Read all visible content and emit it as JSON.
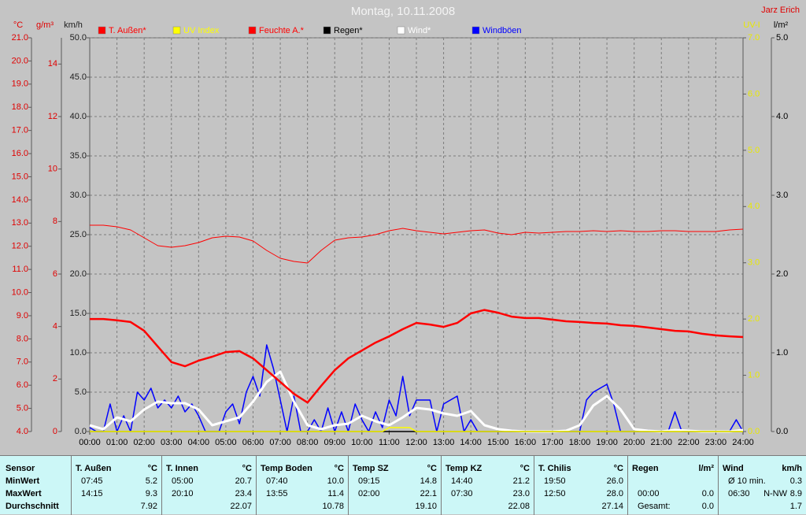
{
  "chart_data": {
    "type": "line",
    "title": "Montag, 10.11.2008",
    "author": "Jarz Erich",
    "xlim": [
      0,
      24
    ],
    "xticks": [
      {
        "value": 0,
        "label": "00:00"
      },
      {
        "value": 1,
        "label": "01:00"
      },
      {
        "value": 2,
        "label": "02:00"
      },
      {
        "value": 3,
        "label": "03:00"
      },
      {
        "value": 4,
        "label": "04:00"
      },
      {
        "value": 5,
        "label": "05:00"
      },
      {
        "value": 6,
        "label": "06:00"
      },
      {
        "value": 7,
        "label": "07:00"
      },
      {
        "value": 8,
        "label": "08:00"
      },
      {
        "value": 9,
        "label": "09:00"
      },
      {
        "value": 10,
        "label": "10:00"
      },
      {
        "value": 11,
        "label": "11:00"
      },
      {
        "value": 12,
        "label": "12:00"
      },
      {
        "value": 13,
        "label": "13:00"
      },
      {
        "value": 14,
        "label": "14:00"
      },
      {
        "value": 15,
        "label": "15:00"
      },
      {
        "value": 16,
        "label": "16:00"
      },
      {
        "value": 17,
        "label": "17:00"
      },
      {
        "value": 18,
        "label": "18:00"
      },
      {
        "value": 19,
        "label": "19:00"
      },
      {
        "value": 20,
        "label": "20:00"
      },
      {
        "value": 21,
        "label": "21:00"
      },
      {
        "value": 22,
        "label": "22:00"
      },
      {
        "value": 23,
        "label": "23:00"
      },
      {
        "value": 24,
        "label": "24:00"
      }
    ],
    "grid": true,
    "grid_axis": 2,
    "axes": [
      {
        "label": "°C",
        "color": "#e00000",
        "ylim": [
          4,
          21
        ],
        "yticks": [
          {
            "value": 4,
            "label": "4.0"
          },
          {
            "value": 5,
            "label": "5.0"
          },
          {
            "value": 6,
            "label": "6.0"
          },
          {
            "value": 7,
            "label": "7.0"
          },
          {
            "value": 8,
            "label": "8.0"
          },
          {
            "value": 9,
            "label": "9.0"
          },
          {
            "value": 10,
            "label": "10.0"
          },
          {
            "value": 11,
            "label": "11.0"
          },
          {
            "value": 12,
            "label": "12.0"
          },
          {
            "value": 13,
            "label": "13.0"
          },
          {
            "value": 14,
            "label": "14.0"
          },
          {
            "value": 15,
            "label": "15.0"
          },
          {
            "value": 16,
            "label": "16.0"
          },
          {
            "value": 17,
            "label": "17.0"
          },
          {
            "value": 18,
            "label": "18.0"
          },
          {
            "value": 19,
            "label": "19.0"
          },
          {
            "value": 20,
            "label": "20.0"
          },
          {
            "value": 21,
            "label": "21.0"
          }
        ]
      },
      {
        "label": "g/m³",
        "color": "#e00000",
        "ylim": [
          0,
          15
        ],
        "yticks": [
          0,
          2,
          4,
          6,
          8,
          10,
          12,
          14
        ]
      },
      {
        "label": "km/h",
        "color": "#202020",
        "ylim": [
          0,
          50
        ],
        "yticks": [
          {
            "value": 0,
            "label": "0.0"
          },
          {
            "value": 5,
            "label": "5.0"
          },
          {
            "value": 10,
            "label": "10.0"
          },
          {
            "value": 15,
            "label": "15.0"
          },
          {
            "value": 20,
            "label": "20.0"
          },
          {
            "value": 25,
            "label": "25.0"
          },
          {
            "value": 30,
            "label": "30.0"
          },
          {
            "value": 35,
            "label": "35.0"
          },
          {
            "value": 40,
            "label": "40.0"
          },
          {
            "value": 45,
            "label": "45.0"
          },
          {
            "value": 50,
            "label": "50.0"
          }
        ]
      },
      {
        "label": "UV-I",
        "color": "#e8e800",
        "ylim": [
          0,
          7
        ],
        "yticks": [
          {
            "value": 0,
            "label": "0.0"
          },
          {
            "value": 1,
            "label": "1.0"
          },
          {
            "value": 2,
            "label": "2.0"
          },
          {
            "value": 3,
            "label": "3.0"
          },
          {
            "value": 4,
            "label": "4.0"
          },
          {
            "value": 5,
            "label": "5.0"
          },
          {
            "value": 6,
            "label": "6.0"
          },
          {
            "value": 7,
            "label": "7.0"
          }
        ]
      },
      {
        "label": "l/m²",
        "color": "#000000",
        "ylim": [
          0,
          5
        ],
        "yticks": [
          {
            "value": 0,
            "label": "0.0"
          },
          {
            "value": 1,
            "label": "1.0"
          },
          {
            "value": 2,
            "label": "2.0"
          },
          {
            "value": 3,
            "label": "3.0"
          },
          {
            "value": 4,
            "label": "4.0"
          },
          {
            "value": 5,
            "label": "5.0"
          }
        ]
      }
    ],
    "x": [
      0,
      0.5,
      1,
      1.5,
      2,
      2.5,
      3,
      3.5,
      4,
      4.5,
      5,
      5.5,
      6,
      6.5,
      7,
      7.5,
      8,
      8.5,
      9,
      9.5,
      10,
      10.5,
      11,
      11.5,
      12,
      12.5,
      13,
      13.5,
      14,
      14.5,
      15,
      15.5,
      16,
      16.5,
      17,
      17.5,
      18,
      18.5,
      19,
      19.5,
      20,
      20.5,
      21,
      21.5,
      22,
      22.5,
      23,
      23.5,
      24
    ],
    "series": [
      {
        "name": "T. Außen*",
        "color": "#ff0000",
        "axis": 0,
        "values": [
          8.86,
          8.86,
          8.8,
          8.73,
          8.35,
          7.67,
          7.0,
          6.82,
          7.06,
          7.23,
          7.43,
          7.47,
          7.16,
          6.65,
          6.14,
          5.63,
          5.25,
          5.97,
          6.65,
          7.16,
          7.5,
          7.84,
          8.11,
          8.42,
          8.69,
          8.62,
          8.52,
          8.69,
          9.1,
          9.25,
          9.13,
          8.96,
          8.9,
          8.9,
          8.83,
          8.76,
          8.73,
          8.69,
          8.66,
          8.59,
          8.56,
          8.49,
          8.42,
          8.35,
          8.32,
          8.22,
          8.15,
          8.11,
          8.08
        ]
      },
      {
        "name": "UV Index",
        "color": "#ffff00",
        "axis": 3,
        "x": [
          0,
          10.75,
          11,
          11.75,
          12,
          24
        ],
        "values": [
          0,
          0,
          0.07,
          0.07,
          0,
          0
        ]
      },
      {
        "name": "Feuchte A.*",
        "color": "#ff0000",
        "axis": 1,
        "values": [
          7.86,
          7.86,
          7.8,
          7.68,
          7.38,
          7.08,
          7.02,
          7.08,
          7.2,
          7.38,
          7.44,
          7.41,
          7.26,
          6.9,
          6.6,
          6.48,
          6.42,
          6.9,
          7.29,
          7.38,
          7.41,
          7.5,
          7.65,
          7.74,
          7.65,
          7.59,
          7.53,
          7.59,
          7.65,
          7.68,
          7.56,
          7.5,
          7.59,
          7.56,
          7.59,
          7.62,
          7.62,
          7.65,
          7.62,
          7.65,
          7.62,
          7.62,
          7.65,
          7.65,
          7.62,
          7.62,
          7.62,
          7.68,
          7.71
        ]
      },
      {
        "name": "Regen*",
        "color": "#000000",
        "axis": 4,
        "x": [
          0,
          24
        ],
        "values": [
          0,
          0
        ]
      },
      {
        "name": "Wind*",
        "color": "#ffffff",
        "axis": 2,
        "values": [
          0.8,
          0.3,
          1.8,
          1.3,
          2.8,
          3.8,
          3.6,
          3.6,
          2.8,
          0.8,
          1.3,
          1.8,
          3.8,
          6.3,
          7.6,
          3.8,
          0.8,
          0.3,
          0.8,
          1.0,
          2.0,
          1.3,
          0.8,
          1.8,
          3.0,
          2.8,
          2.3,
          2.0,
          2.6,
          0.8,
          0.3,
          0.1,
          0,
          0,
          0,
          0.1,
          0.8,
          3.3,
          4.5,
          2.8,
          0.3,
          0.1,
          0,
          0.2,
          0.1,
          0,
          0,
          0,
          0.2
        ]
      },
      {
        "name": "Windböen",
        "color": "#0000ff",
        "axis": 2,
        "x": [
          0,
          0.25,
          0.5,
          0.75,
          1,
          1.25,
          1.5,
          1.75,
          2,
          2.25,
          2.5,
          2.75,
          3,
          3.25,
          3.5,
          3.75,
          4,
          4.25,
          4.5,
          4.75,
          5,
          5.25,
          5.5,
          5.75,
          6,
          6.25,
          6.5,
          6.75,
          7,
          7.25,
          7.5,
          7.75,
          8,
          8.25,
          8.5,
          8.75,
          9,
          9.25,
          9.5,
          9.75,
          10,
          10.25,
          10.5,
          10.75,
          11,
          11.25,
          11.5,
          11.75,
          12,
          12.25,
          12.5,
          12.75,
          13,
          13.25,
          13.5,
          13.75,
          14,
          14.25,
          14.5,
          14.75,
          15,
          15.25,
          15.5,
          15.75,
          16,
          16.25,
          16.5,
          16.75,
          17,
          17.25,
          17.5,
          17.75,
          18,
          18.25,
          18.5,
          18.75,
          19,
          19.25,
          19.5,
          19.75,
          20,
          20.25,
          20.5,
          20.75,
          21,
          21.25,
          21.5,
          21.75,
          22,
          22.25,
          22.5,
          22.75,
          23,
          23.25,
          23.5,
          23.75,
          24
        ],
        "values": [
          0.5,
          0,
          0,
          3.5,
          0,
          2.0,
          0,
          5.0,
          4.0,
          5.5,
          3.0,
          4.0,
          3.0,
          4.5,
          2.5,
          3.5,
          2.0,
          0,
          0,
          0,
          2.5,
          3.5,
          1.0,
          5.0,
          7.0,
          4.5,
          11.0,
          8.0,
          4.0,
          0,
          4.5,
          0,
          0,
          1.5,
          0,
          3.0,
          0,
          2.5,
          0,
          3.5,
          1.5,
          0,
          2.5,
          0.5,
          4.0,
          2.0,
          7.0,
          2.0,
          4.0,
          4.0,
          4.0,
          0,
          3.5,
          4.0,
          4.5,
          0,
          1.5,
          0,
          0,
          0,
          0,
          0,
          0,
          0,
          0,
          0,
          0,
          0,
          0,
          0,
          0,
          0,
          0,
          4.0,
          5.0,
          5.5,
          6.0,
          3.5,
          0,
          0,
          0,
          0,
          0,
          0,
          0,
          0,
          2.5,
          0,
          0,
          0,
          0,
          0,
          0,
          0,
          0,
          1.5,
          0
        ]
      }
    ]
  },
  "stats": {
    "first_header": "Sensor",
    "row_labels": [
      "MinWert",
      "MaxWert",
      "Durchschnitt"
    ],
    "columns": [
      {
        "name": "T. Außen",
        "unit": "°C",
        "rows": [
          [
            "07:45",
            "5.2"
          ],
          [
            "14:15",
            "9.3"
          ],
          [
            "7.92"
          ]
        ]
      },
      {
        "name": "T. Innen",
        "unit": "°C",
        "rows": [
          [
            "05:00",
            "20.7"
          ],
          [
            "20:10",
            "23.4"
          ],
          [
            "22.07"
          ]
        ]
      },
      {
        "name": "Temp Boden",
        "unit": "°C",
        "rows": [
          [
            "07:40",
            "10.0"
          ],
          [
            "13:55",
            "11.4"
          ],
          [
            "10.78"
          ]
        ]
      },
      {
        "name": "Temp SZ",
        "unit": "°C",
        "rows": [
          [
            "09:15",
            "14.8"
          ],
          [
            "02:00",
            "22.1"
          ],
          [
            "19.10"
          ]
        ]
      },
      {
        "name": "Temp KZ",
        "unit": "°C",
        "rows": [
          [
            "14:40",
            "21.2"
          ],
          [
            "07:30",
            "23.0"
          ],
          [
            "22.08"
          ]
        ]
      },
      {
        "name": "T. Chilis",
        "unit": "°C",
        "rows": [
          [
            "19:50",
            "26.0"
          ],
          [
            "12:50",
            "28.0"
          ],
          [
            "27.14"
          ]
        ]
      },
      {
        "name": "Regen",
        "unit": "l/m²",
        "rows": [
          [],
          [
            "00:00",
            "0.0"
          ],
          [
            "Gesamt:",
            "0.0"
          ]
        ]
      },
      {
        "name": "Wind",
        "unit": "km/h",
        "rows": [
          [
            "Ø 10 min.",
            "0.3"
          ],
          [
            "06:30",
            "N-NW",
            "8.9"
          ],
          [
            "1.7"
          ]
        ]
      }
    ]
  }
}
